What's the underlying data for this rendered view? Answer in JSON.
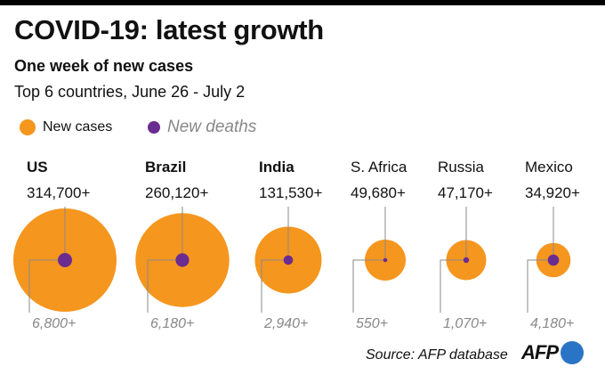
{
  "header": {
    "title": "COVID-19: latest growth",
    "subtitle": "One week of new cases",
    "description": "Top 6 countries, June 26 - July 2"
  },
  "legend": {
    "cases_label": "New cases",
    "deaths_label": "New deaths"
  },
  "colors": {
    "cases": "#f5961e",
    "deaths": "#6b2c91",
    "leader": "#8a8a8a",
    "deaths_text": "#888888",
    "logo_blue": "#2a74c5"
  },
  "chart_data": {
    "type": "bubble",
    "title": "COVID-19: latest growth",
    "subtitle": "One week of new cases",
    "categories": [
      "US",
      "Brazil",
      "India",
      "S. Africa",
      "Russia",
      "Mexico"
    ],
    "series": [
      {
        "name": "New cases",
        "values": [
          314700,
          260120,
          131530,
          49680,
          47170,
          34920
        ],
        "labels": [
          "314,700+",
          "260,120+",
          "131,530+",
          "49,680+",
          "47,170+",
          "34,920+"
        ]
      },
      {
        "name": "New deaths",
        "values": [
          6800,
          6180,
          2940,
          550,
          1070,
          4180
        ],
        "labels": [
          "6,800+",
          "6,180+",
          "2,940+",
          "550+",
          "1,070+",
          "4,180+"
        ]
      }
    ]
  },
  "footer": {
    "source": "Source: AFP database",
    "logo_text": "AFP",
    "logo_icon": "afp-logo-circle"
  }
}
